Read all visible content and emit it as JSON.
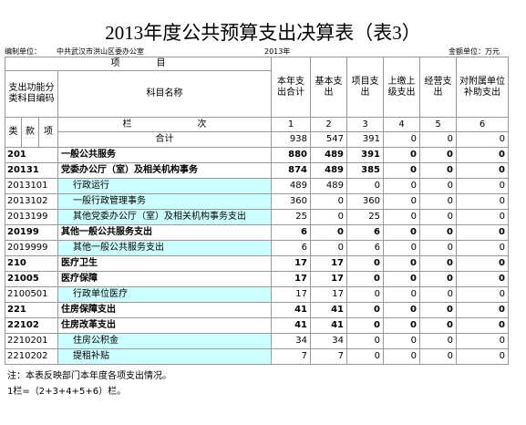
{
  "header": {
    "title": "2013年度公共预算支出决算表（表3）",
    "unit_label": "编制单位：",
    "unit": "中共武汉市洪山区委办公室",
    "year": "2013年",
    "amount_unit": "金额单位：万元"
  },
  "table": {
    "item_header": "项　　　　目",
    "code_header": "支出功能分类科目编码",
    "name_header": "科目名称",
    "value_headers": [
      "本年支出合计",
      "基本支出",
      "项目支出",
      "上缴上级支出",
      "经营支出",
      "对附属单位补助支出"
    ],
    "code_parts": [
      "类",
      "款",
      "项"
    ],
    "index_label": [
      "栏",
      "次"
    ],
    "index_numbers": [
      1,
      2,
      3,
      4,
      5,
      6
    ],
    "total": {
      "label": "合计",
      "values": [
        938,
        547,
        391,
        0,
        0,
        0
      ]
    },
    "rows": [
      {
        "code": "201",
        "name": "一般公共服务",
        "bold": true,
        "values": [
          880,
          489,
          391,
          0,
          0,
          0
        ]
      },
      {
        "code": "20131",
        "name": "党委办公厅（室）及相关机构事务",
        "bold": true,
        "values": [
          874,
          489,
          385,
          0,
          0,
          0
        ]
      },
      {
        "code": "2013101",
        "name": "行政运行",
        "bold": false,
        "values": [
          489,
          489,
          0,
          0,
          0,
          0
        ]
      },
      {
        "code": "2013102",
        "name": "一般行政管理事务",
        "bold": false,
        "values": [
          360,
          0,
          360,
          0,
          0,
          0
        ]
      },
      {
        "code": "2013199",
        "name": "其他党委办公厅（室）及相关机构事务支出",
        "bold": false,
        "values": [
          25,
          0,
          25,
          0,
          0,
          0
        ]
      },
      {
        "code": "20199",
        "name": "其他一般公共服务支出",
        "bold": true,
        "values": [
          6,
          0,
          6,
          0,
          0,
          0
        ]
      },
      {
        "code": "2019999",
        "name": "其他一般公共服务支出",
        "bold": false,
        "values": [
          6,
          0,
          6,
          0,
          0,
          0
        ]
      },
      {
        "code": "210",
        "name": "医疗卫生",
        "bold": true,
        "values": [
          17,
          17,
          0,
          0,
          0,
          0
        ]
      },
      {
        "code": "21005",
        "name": "医疗保障",
        "bold": true,
        "values": [
          17,
          17,
          0,
          0,
          0,
          0
        ]
      },
      {
        "code": "2100501",
        "name": "行政单位医疗",
        "bold": false,
        "values": [
          17,
          17,
          0,
          0,
          0,
          0
        ]
      },
      {
        "code": "221",
        "name": "住房保障支出",
        "bold": true,
        "values": [
          41,
          41,
          0,
          0,
          0,
          0
        ]
      },
      {
        "code": "22102",
        "name": "住房改革支出",
        "bold": true,
        "values": [
          41,
          41,
          0,
          0,
          0,
          0
        ]
      },
      {
        "code": "2210201",
        "name": "住房公积金",
        "bold": false,
        "values": [
          34,
          34,
          0,
          0,
          0,
          0
        ]
      },
      {
        "code": "2210202",
        "name": "提租补贴",
        "bold": false,
        "values": [
          7,
          7,
          0,
          0,
          0,
          0
        ]
      }
    ]
  },
  "notes": [
    "注：本表反映部门本年度各项支出情况。",
    "1栏=（2+3+4+5+6）栏。"
  ]
}
